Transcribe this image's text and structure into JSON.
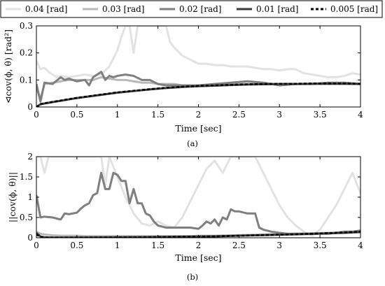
{
  "chart_data": [
    {
      "type": "line",
      "panel_label": "(a)",
      "xlabel": "Time [sec]",
      "ylabel": "⊲cov(ϕ, θ) [rad²]",
      "xlim": [
        0,
        4
      ],
      "ylim": [
        0,
        0.3
      ],
      "xticks": [
        "0",
        "0.5",
        "1",
        "1.5",
        "2",
        "2.5",
        "3",
        "3.5",
        "4"
      ],
      "yticks": [
        "0",
        "0.1",
        "0.2",
        "0.3"
      ],
      "grid": false,
      "legend_position": "top, outside plot",
      "series": [
        {
          "name": "0.04 [rad]",
          "color": "#e2e2e2",
          "style": "solid",
          "x": [
            0,
            0.05,
            0.1,
            0.15,
            0.2,
            0.25,
            0.3,
            0.4,
            0.5,
            0.6,
            0.7,
            0.8,
            0.9,
            1.0,
            1.05,
            1.1,
            1.15,
            1.2,
            1.25,
            1.3,
            1.35,
            1.4,
            1.45,
            1.5,
            1.55,
            1.6,
            1.65,
            1.7,
            1.8,
            1.9,
            2.0,
            2.1,
            2.2,
            2.3,
            2.4,
            2.5,
            2.6,
            2.7,
            2.8,
            2.9,
            3.0,
            3.1,
            3.2,
            3.3,
            3.4,
            3.5,
            3.6,
            3.7,
            3.8,
            3.9,
            4.0
          ],
          "y": [
            0.17,
            0.14,
            0.145,
            0.13,
            0.12,
            0.11,
            0.115,
            0.11,
            0.115,
            0.12,
            0.115,
            0.12,
            0.15,
            0.21,
            0.26,
            0.3,
            0.3,
            0.2,
            0.3,
            0.3,
            0.3,
            0.3,
            0.3,
            0.3,
            0.3,
            0.3,
            0.24,
            0.22,
            0.19,
            0.175,
            0.16,
            0.16,
            0.155,
            0.155,
            0.15,
            0.15,
            0.15,
            0.145,
            0.14,
            0.14,
            0.135,
            0.14,
            0.14,
            0.125,
            0.12,
            0.115,
            0.11,
            0.11,
            0.115,
            0.125,
            0.12
          ]
        },
        {
          "name": "0.03 [rad]",
          "color": "#b8b8b8",
          "style": "solid",
          "x": [
            0,
            0.05,
            0.1,
            0.2,
            0.3,
            0.4,
            0.5,
            0.6,
            0.7,
            0.8,
            0.9,
            1.0,
            1.1,
            1.2,
            1.3,
            1.4,
            1.5,
            1.6,
            1.7,
            1.8,
            1.9,
            2.0,
            2.2,
            2.4,
            2.6,
            2.8,
            3.0,
            3.2,
            3.4,
            3.6,
            3.8,
            4.0
          ],
          "y": [
            0.07,
            0.03,
            0.085,
            0.09,
            0.095,
            0.1,
            0.1,
            0.1,
            0.1,
            0.11,
            0.105,
            0.1,
            0.1,
            0.095,
            0.09,
            0.09,
            0.085,
            0.085,
            0.085,
            0.08,
            0.08,
            0.08,
            0.085,
            0.085,
            0.085,
            0.085,
            0.085,
            0.085,
            0.085,
            0.085,
            0.085,
            0.085
          ]
        },
        {
          "name": "0.02 [rad]",
          "color": "#7f7f7f",
          "style": "solid",
          "x": [
            0,
            0.05,
            0.1,
            0.2,
            0.3,
            0.35,
            0.4,
            0.5,
            0.6,
            0.65,
            0.7,
            0.75,
            0.8,
            0.85,
            0.9,
            0.95,
            1.0,
            1.1,
            1.2,
            1.3,
            1.4,
            1.5,
            1.6,
            1.7,
            1.8,
            2.0,
            2.2,
            2.4,
            2.6,
            2.8,
            3.0,
            3.2,
            3.4,
            3.6,
            3.8,
            4.0
          ],
          "y": [
            0.085,
            0.02,
            0.09,
            0.085,
            0.11,
            0.1,
            0.105,
            0.095,
            0.1,
            0.08,
            0.11,
            0.12,
            0.13,
            0.1,
            0.115,
            0.11,
            0.115,
            0.12,
            0.115,
            0.1,
            0.1,
            0.085,
            0.08,
            0.08,
            0.08,
            0.08,
            0.085,
            0.09,
            0.095,
            0.09,
            0.08,
            0.085,
            0.085,
            0.09,
            0.09,
            0.085
          ]
        },
        {
          "name": "0.01 [rad]",
          "color": "#3a3a3a",
          "style": "solid",
          "x": [
            0,
            0.05,
            0.1,
            0.2,
            0.3,
            0.4,
            0.5,
            0.6,
            0.7,
            0.8,
            0.9,
            1.0,
            1.2,
            1.4,
            1.6,
            1.8,
            2.0,
            2.2,
            2.4,
            2.6,
            2.8,
            3.0,
            3.2,
            3.4,
            3.6,
            3.8,
            4.0
          ],
          "y": [
            0.0,
            0.01,
            0.013,
            0.018,
            0.023,
            0.028,
            0.033,
            0.037,
            0.041,
            0.045,
            0.049,
            0.053,
            0.059,
            0.065,
            0.07,
            0.074,
            0.077,
            0.079,
            0.081,
            0.083,
            0.084,
            0.085,
            0.085,
            0.086,
            0.086,
            0.086,
            0.085
          ]
        },
        {
          "name": "0.005 [rad]",
          "color": "#000000",
          "style": "dashed",
          "x": [
            0,
            0.05,
            0.1,
            0.2,
            0.3,
            0.4,
            0.5,
            0.6,
            0.7,
            0.8,
            0.9,
            1.0,
            1.2,
            1.4,
            1.6,
            1.8,
            2.0,
            2.2,
            2.4,
            2.6,
            2.8,
            3.0,
            3.2,
            3.4,
            3.6,
            3.8,
            4.0
          ],
          "y": [
            0.0,
            0.011,
            0.014,
            0.019,
            0.024,
            0.029,
            0.034,
            0.038,
            0.042,
            0.046,
            0.05,
            0.054,
            0.06,
            0.066,
            0.071,
            0.075,
            0.078,
            0.08,
            0.082,
            0.084,
            0.085,
            0.086,
            0.086,
            0.087,
            0.087,
            0.087,
            0.086
          ]
        }
      ]
    },
    {
      "type": "line",
      "panel_label": "(b)",
      "xlabel": "Time [sec]",
      "ylabel": "||cov(ϕ, θ)||",
      "xlim": [
        0,
        4
      ],
      "ylim": [
        0,
        2
      ],
      "xticks": [
        "0",
        "0.5",
        "1",
        "1.5",
        "2",
        "2.5",
        "3",
        "3.5",
        "4"
      ],
      "yticks": [
        "0",
        "0.5",
        "1",
        "1.5",
        "2"
      ],
      "grid": false,
      "series": [
        {
          "name": "0.04 [rad]",
          "color": "#e2e2e2",
          "style": "solid",
          "x": [
            0,
            0.05,
            0.1,
            0.15,
            0.2,
            0.3,
            0.4,
            0.5,
            0.6,
            0.7,
            0.8,
            0.85,
            0.9,
            1.0,
            1.1,
            1.2,
            1.3,
            1.4,
            1.5,
            1.6,
            1.7,
            1.8,
            1.9,
            2.0,
            2.1,
            2.2,
            2.3,
            2.4,
            2.5,
            2.6,
            2.7,
            2.8,
            2.9,
            3.0,
            3.1,
            3.2,
            3.3,
            3.4,
            3.5,
            3.6,
            3.7,
            3.8,
            3.9,
            4.0
          ],
          "y": [
            2,
            2,
            1.6,
            2,
            2,
            2,
            2,
            2,
            2,
            2,
            2,
            1.3,
            2,
            1.5,
            1.0,
            0.6,
            0.35,
            0.3,
            0.4,
            0.3,
            0.25,
            0.5,
            0.9,
            1.3,
            1.7,
            1.9,
            1.6,
            2,
            2,
            2,
            2,
            1.6,
            1.2,
            0.8,
            0.5,
            0.3,
            0.15,
            0.05,
            0.2,
            0.5,
            0.8,
            1.2,
            1.6,
            1.1
          ]
        },
        {
          "name": "0.03 [rad]",
          "color": "#b8b8b8",
          "style": "solid",
          "x": [
            0,
            0.05,
            0.1,
            0.2,
            0.3,
            0.4,
            0.5,
            0.6,
            0.7,
            0.8,
            0.9,
            1.0,
            1.1,
            1.2,
            1.3,
            1.4,
            1.5,
            1.6,
            1.7,
            1.8,
            1.9,
            2.0,
            2.2,
            2.4,
            2.6,
            2.8,
            3.0,
            3.2,
            3.4,
            3.6,
            3.8,
            4.0
          ],
          "y": [
            0.15,
            0.1,
            0.08,
            0.06,
            0.05,
            0.05,
            0.05,
            0.04,
            0.04,
            0.04,
            0.04,
            0.04,
            0.04,
            0.04,
            0.04,
            0.04,
            0.04,
            0.04,
            0.04,
            0.04,
            0.04,
            0.05,
            0.05,
            0.06,
            0.07,
            0.08,
            0.09,
            0.1,
            0.11,
            0.12,
            0.13,
            0.14
          ]
        },
        {
          "name": "0.02 [rad]",
          "color": "#7f7f7f",
          "style": "solid",
          "x": [
            0,
            0.05,
            0.1,
            0.2,
            0.3,
            0.35,
            0.4,
            0.5,
            0.55,
            0.6,
            0.65,
            0.7,
            0.75,
            0.8,
            0.85,
            0.9,
            0.95,
            1.0,
            1.05,
            1.1,
            1.15,
            1.2,
            1.25,
            1.3,
            1.35,
            1.4,
            1.45,
            1.5,
            1.6,
            1.7,
            1.8,
            1.9,
            2.0,
            2.05,
            2.1,
            2.15,
            2.2,
            2.25,
            2.3,
            2.35,
            2.4,
            2.45,
            2.5,
            2.6,
            2.7,
            2.75,
            2.8,
            2.9,
            3.0,
            3.1,
            3.2,
            3.3,
            3.4,
            3.5,
            3.6,
            3.7,
            3.8,
            3.9,
            4.0
          ],
          "y": [
            1.05,
            0.5,
            0.52,
            0.5,
            0.45,
            0.6,
            0.58,
            0.62,
            0.72,
            0.8,
            0.85,
            1.05,
            1.1,
            1.6,
            1.2,
            1.2,
            1.6,
            1.55,
            1.4,
            1.4,
            0.85,
            1.2,
            0.85,
            0.85,
            0.6,
            0.55,
            0.4,
            0.3,
            0.25,
            0.25,
            0.25,
            0.25,
            0.22,
            0.3,
            0.4,
            0.35,
            0.45,
            0.3,
            0.5,
            0.45,
            0.7,
            0.65,
            0.65,
            0.6,
            0.6,
            0.25,
            0.2,
            0.15,
            0.12,
            0.1,
            0.1,
            0.1,
            0.1,
            0.1,
            0.1,
            0.12,
            0.15,
            0.15,
            0.18
          ]
        },
        {
          "name": "0.01 [rad]",
          "color": "#3a3a3a",
          "style": "solid",
          "x": [
            0,
            0.05,
            0.1,
            0.2,
            0.4,
            0.6,
            0.8,
            1.0,
            1.2,
            1.4,
            1.6,
            1.8,
            2.0,
            2.2,
            2.4,
            2.6,
            2.8,
            3.0,
            3.2,
            3.4,
            3.6,
            3.8,
            4.0
          ],
          "y": [
            0.12,
            0.03,
            0.01,
            0.005,
            0.005,
            0.006,
            0.008,
            0.01,
            0.012,
            0.015,
            0.02,
            0.025,
            0.03,
            0.035,
            0.045,
            0.055,
            0.065,
            0.075,
            0.085,
            0.095,
            0.11,
            0.12,
            0.14
          ]
        },
        {
          "name": "0.005 [rad]",
          "color": "#000000",
          "style": "dashed",
          "x": [
            0,
            0.05,
            0.1,
            0.2,
            0.4,
            0.6,
            0.8,
            1.0,
            1.2,
            1.4,
            1.6,
            1.8,
            2.0,
            2.2,
            2.4,
            2.6,
            2.8,
            3.0,
            3.2,
            3.4,
            3.6,
            3.8,
            4.0
          ],
          "y": [
            0.08,
            0.02,
            0.005,
            0.003,
            0.004,
            0.005,
            0.007,
            0.009,
            0.012,
            0.015,
            0.02,
            0.025,
            0.03,
            0.036,
            0.045,
            0.055,
            0.065,
            0.075,
            0.085,
            0.1,
            0.115,
            0.13,
            0.15
          ]
        }
      ]
    }
  ]
}
